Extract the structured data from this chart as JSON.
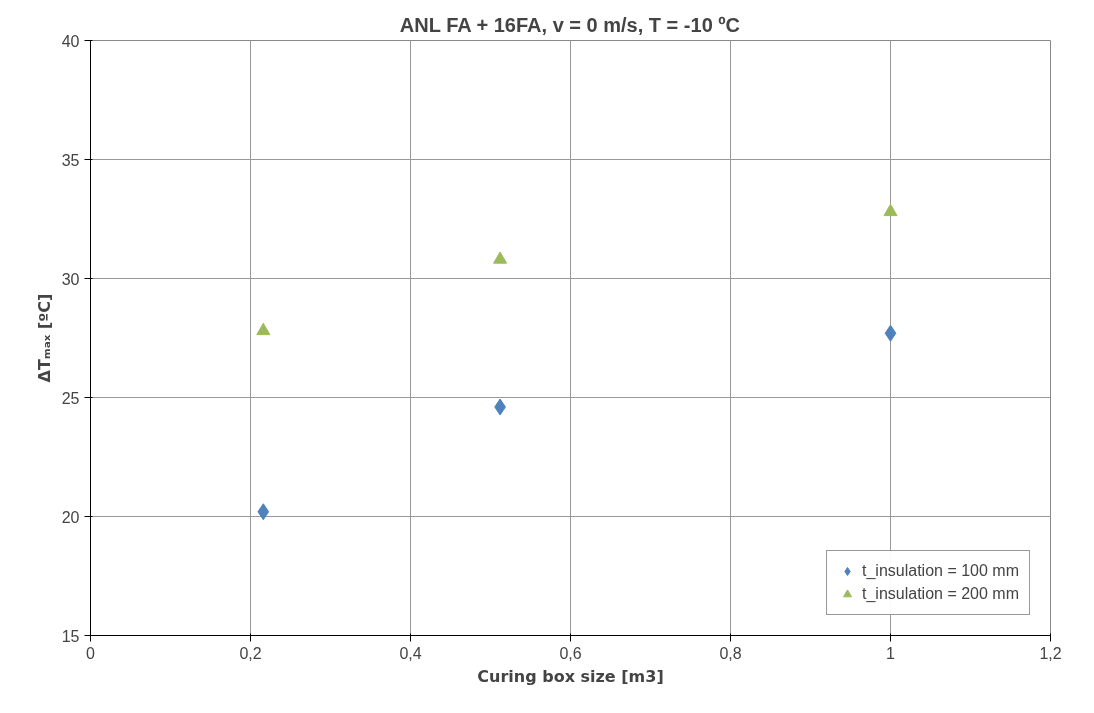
{
  "chart_data": {
    "type": "scatter",
    "title": "ANL FA + 16FA, v = 0 m/s, T = -10 ºC",
    "xlabel": "Curing box size [m3]",
    "ylabel": "ΔTₘₐₓ [ºC]",
    "xlim": [
      0,
      1.2
    ],
    "xticks": [
      0,
      {
        "value": 0.2,
        "label": "0,2"
      },
      {
        "value": 0.4,
        "label": "0,4"
      },
      {
        "value": 0.6,
        "label": "0,6"
      },
      {
        "value": 0.8,
        "label": "0,8"
      },
      1,
      {
        "value": 1.2,
        "label": "1,2"
      }
    ],
    "ylim": [
      15,
      40
    ],
    "yticks": [
      15,
      20,
      25,
      30,
      35,
      40
    ],
    "grid": true,
    "legend": "bottom right",
    "x": [
      0.216,
      0.512,
      1
    ],
    "series": [
      {
        "name": "t_insulation = 100 mm",
        "color": "#4f81bd",
        "marker": "diamond",
        "values": [
          20.2,
          24.6,
          27.7
        ]
      },
      {
        "name": "t_insulation = 200 mm",
        "color": "#9bbb59",
        "marker": "triangle",
        "values": [
          27.8,
          30.8,
          32.8
        ]
      }
    ]
  }
}
